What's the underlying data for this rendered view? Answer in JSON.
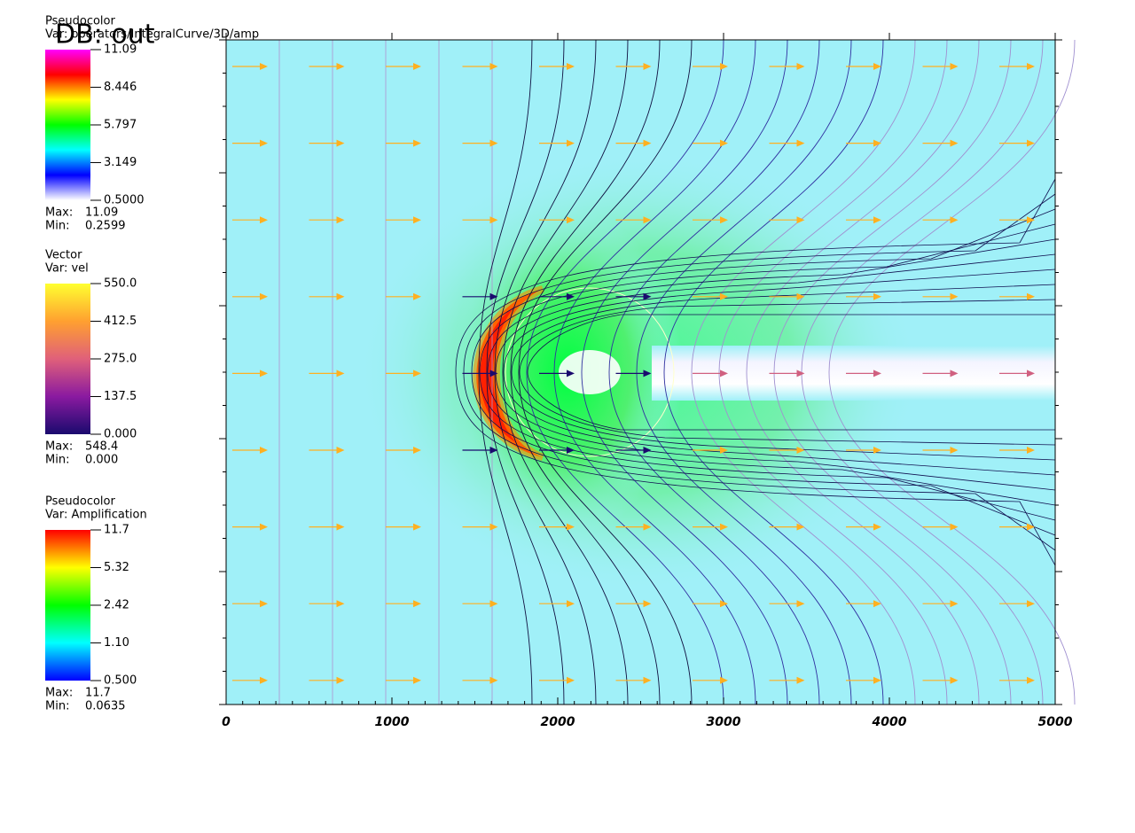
{
  "chart_data": {
    "type": "field",
    "title": "DB: out",
    "xlim": [
      0,
      5000
    ],
    "xticks": [
      0,
      1000,
      2000,
      3000,
      4000,
      5000
    ],
    "legends": [
      {
        "plot": "Pseudocolor",
        "var": "Var: operators/IntegralCurve/3D/amp",
        "range": [
          0.5,
          11.09
        ],
        "log": false,
        "colors": [
          "#ffffff",
          "#0000ff",
          "#00ffff",
          "#00ff00",
          "#ffff00",
          "#ff0000",
          "#ff00ff"
        ],
        "ticks": [
          11.09,
          8.446,
          5.797,
          3.149,
          {
            "value": 0.5,
            "label": "0.5000"
          }
        ],
        "stats": [
          {
            "label": "Max:",
            "value": 11.09
          },
          {
            "label": "Min:",
            "value": 0.2599
          }
        ]
      },
      {
        "plot": "Vector",
        "var": "Var: vel",
        "range": [
          0,
          550
        ],
        "log": false,
        "colors": [
          "#1a0a6e",
          "#8a1aa0",
          "#e0607a",
          "#ffa030",
          "#ffff30"
        ],
        "ticks": [
          {
            "value": 550,
            "label": "550.0"
          },
          412.5,
          {
            "value": 275,
            "label": "275.0"
          },
          137.5,
          {
            "value": 0,
            "label": "0.000"
          }
        ],
        "stats": [
          {
            "label": "Max:",
            "value": 548.4
          },
          {
            "label": "Min:",
            "value": 0,
            "value_label": "0.000"
          }
        ]
      },
      {
        "plot": "Pseudocolor",
        "var": "Var: Amplification",
        "range": [
          0.5,
          11.7
        ],
        "log": true,
        "colors": [
          "#0000ff",
          "#00ffff",
          "#00ff00",
          "#ffff00",
          "#ff0000"
        ],
        "ticks": [
          11.7,
          5.32,
          2.42,
          {
            "value": 1.1,
            "label": "1.10"
          },
          {
            "value": 0.5,
            "label": "0.500"
          }
        ],
        "stats": [
          {
            "label": "Max:",
            "value": 11.7
          },
          {
            "label": "Min:",
            "value": 0.0635
          }
        ]
      }
    ]
  }
}
